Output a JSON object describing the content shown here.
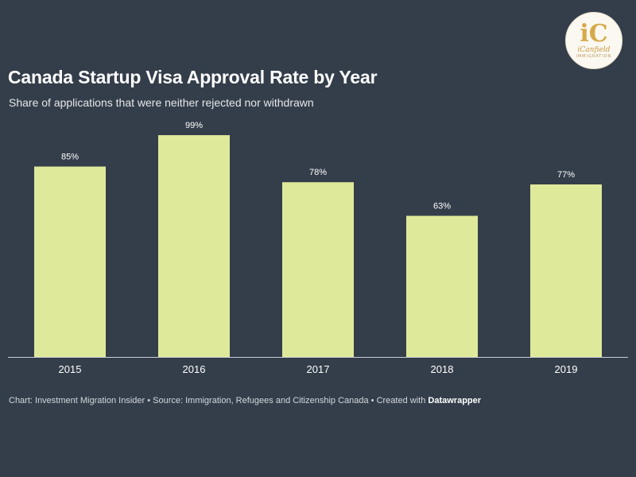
{
  "brand": {
    "logo_mark": "iC",
    "logo_text": "iCanfield",
    "logo_sub": "IMMIGRATION",
    "gold": "#d6a94a"
  },
  "colors": {
    "background": "#343e4b",
    "bar": "#dfe99a",
    "text": "#ffffff",
    "axis": "#c8cdd3"
  },
  "chart_data": {
    "type": "bar",
    "title": "Canada Startup Visa Approval Rate by Year",
    "subtitle": "Share of applications that were neither rejected nor withdrawn",
    "categories": [
      "2015",
      "2016",
      "2017",
      "2018",
      "2019"
    ],
    "values": [
      85,
      99,
      78,
      63,
      77
    ],
    "value_labels": [
      "85%",
      "99%",
      "78%",
      "63%",
      "77%"
    ],
    "xlabel": "",
    "ylabel": "",
    "ylim": [
      0,
      100
    ],
    "grid": false,
    "legend": "none"
  },
  "footer": {
    "prefix": "Chart: Investment Migration Insider • Source: Immigration, Refugees and Citizenship Canada • Created with ",
    "tool": "Datawrapper"
  }
}
